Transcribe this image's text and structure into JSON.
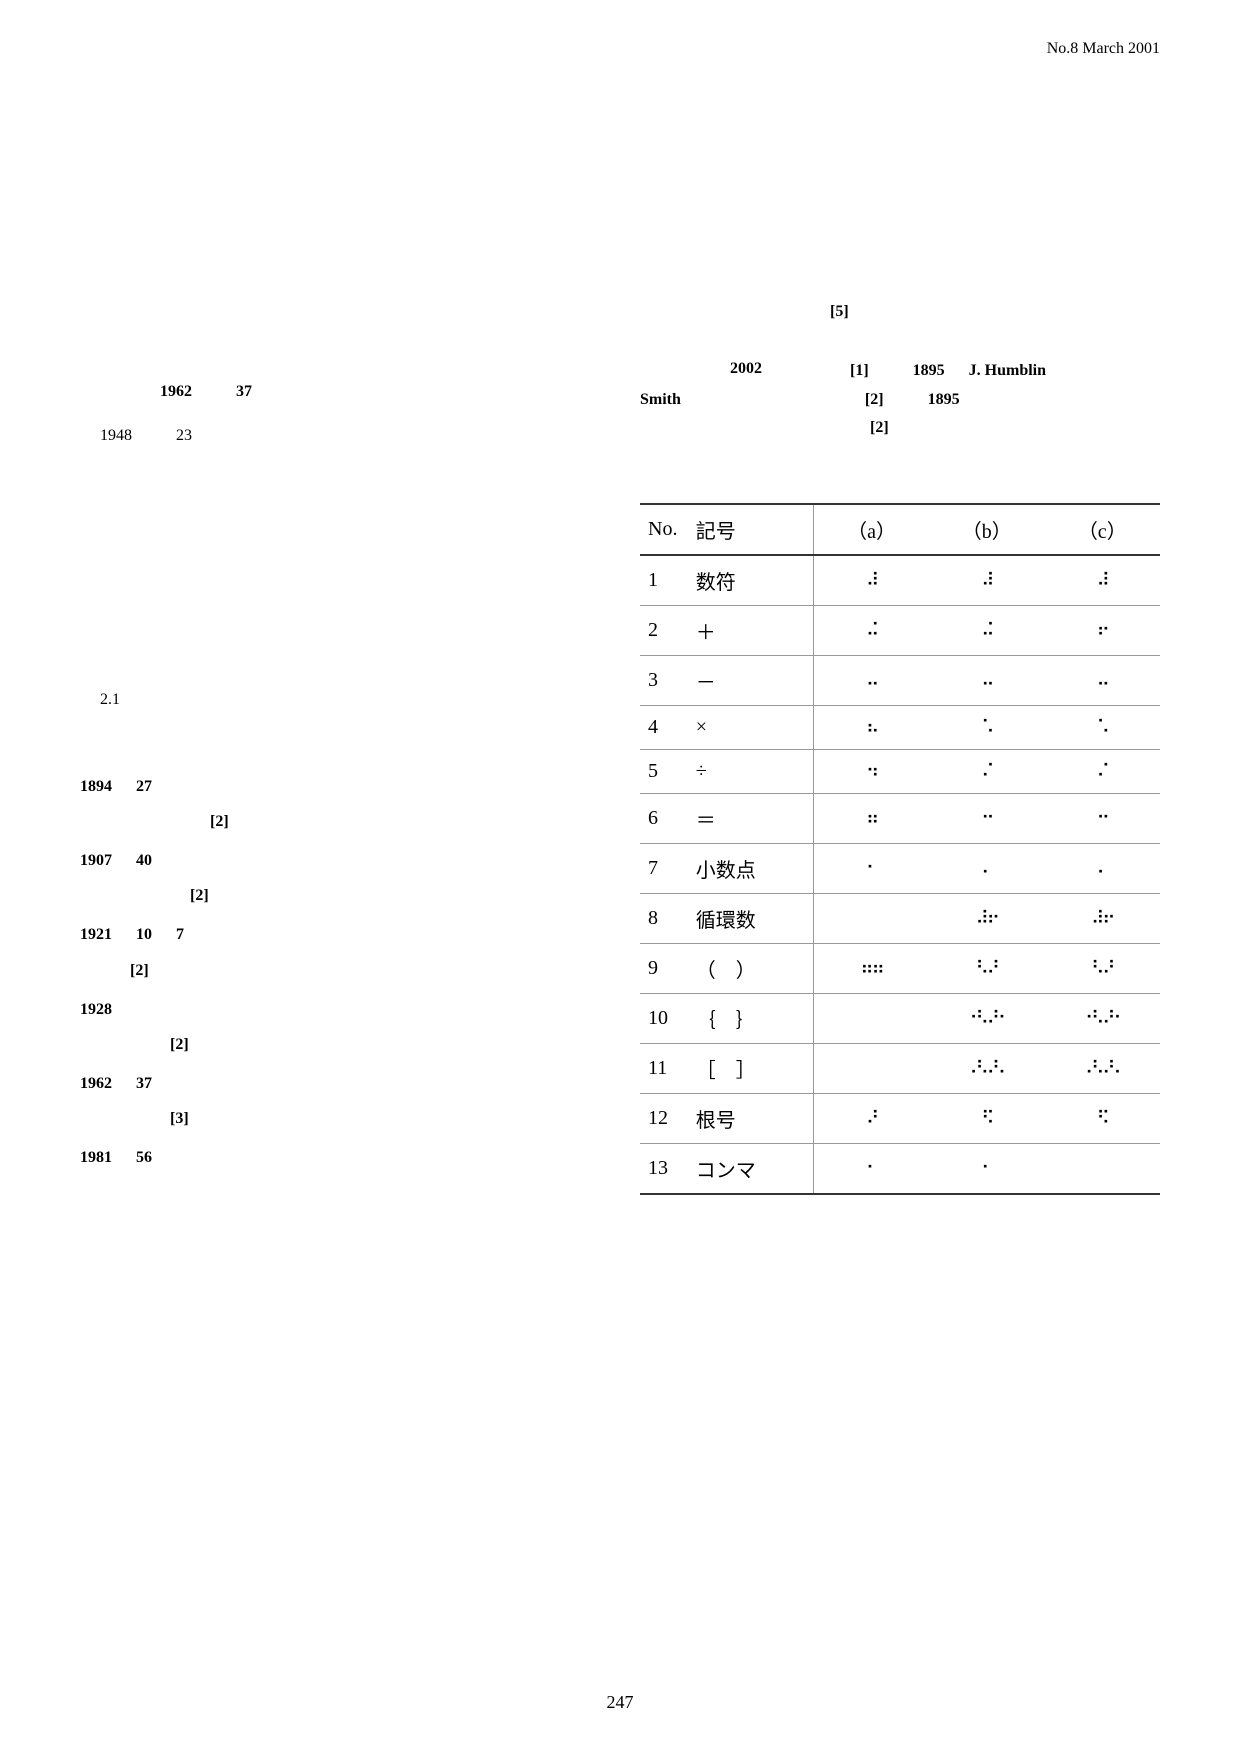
{
  "header": "No.8  March  2001",
  "year_marker": "2002",
  "left": {
    "line1_a": "1962",
    "line1_b": "37",
    "line2_a": "1948",
    "line2_b": "23",
    "section": "2.1",
    "timeline": [
      {
        "year": "1894",
        "sub": "27",
        "extra": "",
        "ref": "[2]"
      },
      {
        "year": "1907",
        "sub": "40",
        "extra": "",
        "ref": "[2]"
      },
      {
        "year": "1921",
        "sub": "10",
        "sub2": "7",
        "ref": "[2]"
      },
      {
        "year": "1928",
        "sub": "",
        "extra": "",
        "ref": "[2]"
      },
      {
        "year": "1962",
        "sub": "37",
        "extra": "",
        "ref": "[3]"
      },
      {
        "year": "1981",
        "sub": "56",
        "extra": "",
        "ref": ""
      }
    ]
  },
  "right": {
    "top_ref": "[5]",
    "refs_line1_r1": "[1]",
    "refs_line1_y": "1895",
    "refs_line1_n": "J. Humblin",
    "refs_line2_n": "Smith",
    "refs_line2_r": "[2]",
    "refs_line2_y": "1895",
    "refs_line3_r": "[2]"
  },
  "table": {
    "headers": [
      "No.",
      "記号",
      "（a）",
      "（b）",
      "（c）"
    ],
    "rows": [
      {
        "no": "1",
        "sym": "数符",
        "a": "⠼",
        "b": "⠼",
        "c": "⠼"
      },
      {
        "no": "2",
        "sym": "＋",
        "a": "⠬",
        "b": "⠬",
        "c": "⠖"
      },
      {
        "no": "3",
        "sym": "－",
        "a": "⠤",
        "b": "⠤",
        "c": "⠤"
      },
      {
        "no": "4",
        "sym": "×",
        "a": "⠦",
        "b": "⠡",
        "c": "⠡"
      },
      {
        "no": "5",
        "sym": "÷",
        "a": "⠲",
        "b": "⠌",
        "c": "⠌"
      },
      {
        "no": "6",
        "sym": "＝",
        "a": "⠶",
        "b": "⠒",
        "c": "⠒"
      },
      {
        "no": "7",
        "sym": "小数点",
        "a": "⠂",
        "b": "⠄",
        "c": "⠄"
      },
      {
        "no": "8",
        "sym": "循環数",
        "a": "",
        "b": "⠼⠖",
        "c": "⠼⠖"
      },
      {
        "no": "9",
        "sym": "（　）",
        "a": "⠶⠶",
        "b": "⠣⠜",
        "c": "⠣⠜"
      },
      {
        "no": "10",
        "sym": "｛　｝",
        "a": "",
        "b": "⠐⠣⠜⠂",
        "c": "⠐⠣⠜⠂"
      },
      {
        "no": "11",
        "sym": "［　］",
        "a": "",
        "b": "⠠⠣⠜⠄",
        "c": "⠠⠣⠜⠄"
      },
      {
        "no": "12",
        "sym": "根号",
        "a": "⠜",
        "b": "⠫",
        "c": "⠫"
      },
      {
        "no": "13",
        "sym": "コンマ",
        "a": "⠂",
        "b": "⠂",
        "c": ""
      }
    ]
  },
  "page": "247"
}
